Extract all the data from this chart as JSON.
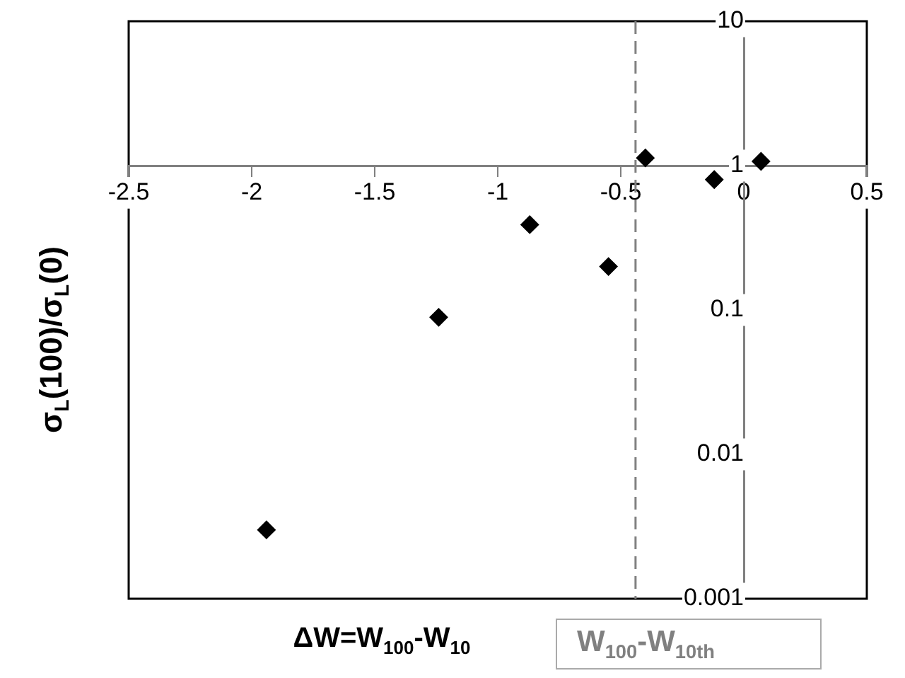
{
  "chart_data": {
    "type": "scatter",
    "xlabel": "ΔW=W$_{100}$-W$_{10}$",
    "ylabel": "σ$_{L}$(100)/σ$_{L}$(0)",
    "x": [
      -1.94,
      -1.24,
      -0.87,
      -0.55,
      -0.4,
      -0.12,
      0.07
    ],
    "series": [
      {
        "color": "#000000",
        "values": [
          0.003,
          0.089,
          0.39,
          0.2,
          1.13,
          0.8,
          1.07
        ]
      }
    ],
    "xlim": [
      -2.5,
      0.5
    ],
    "xticks": [
      -2.5,
      -2,
      -1.5,
      -1,
      -0.5,
      0,
      0.5
    ],
    "ylim": [
      0.001,
      10
    ],
    "yticks": [
      0.001,
      0.01,
      0.1,
      1,
      10
    ],
    "log": "y",
    "marker": "diamond",
    "grid": false,
    "ref_lines": [
      {
        "axis": "x",
        "value": -0.44,
        "label": "W$_{100}$-W$_{10th}$",
        "color": "#808080",
        "line_style": "dashed"
      }
    ]
  }
}
